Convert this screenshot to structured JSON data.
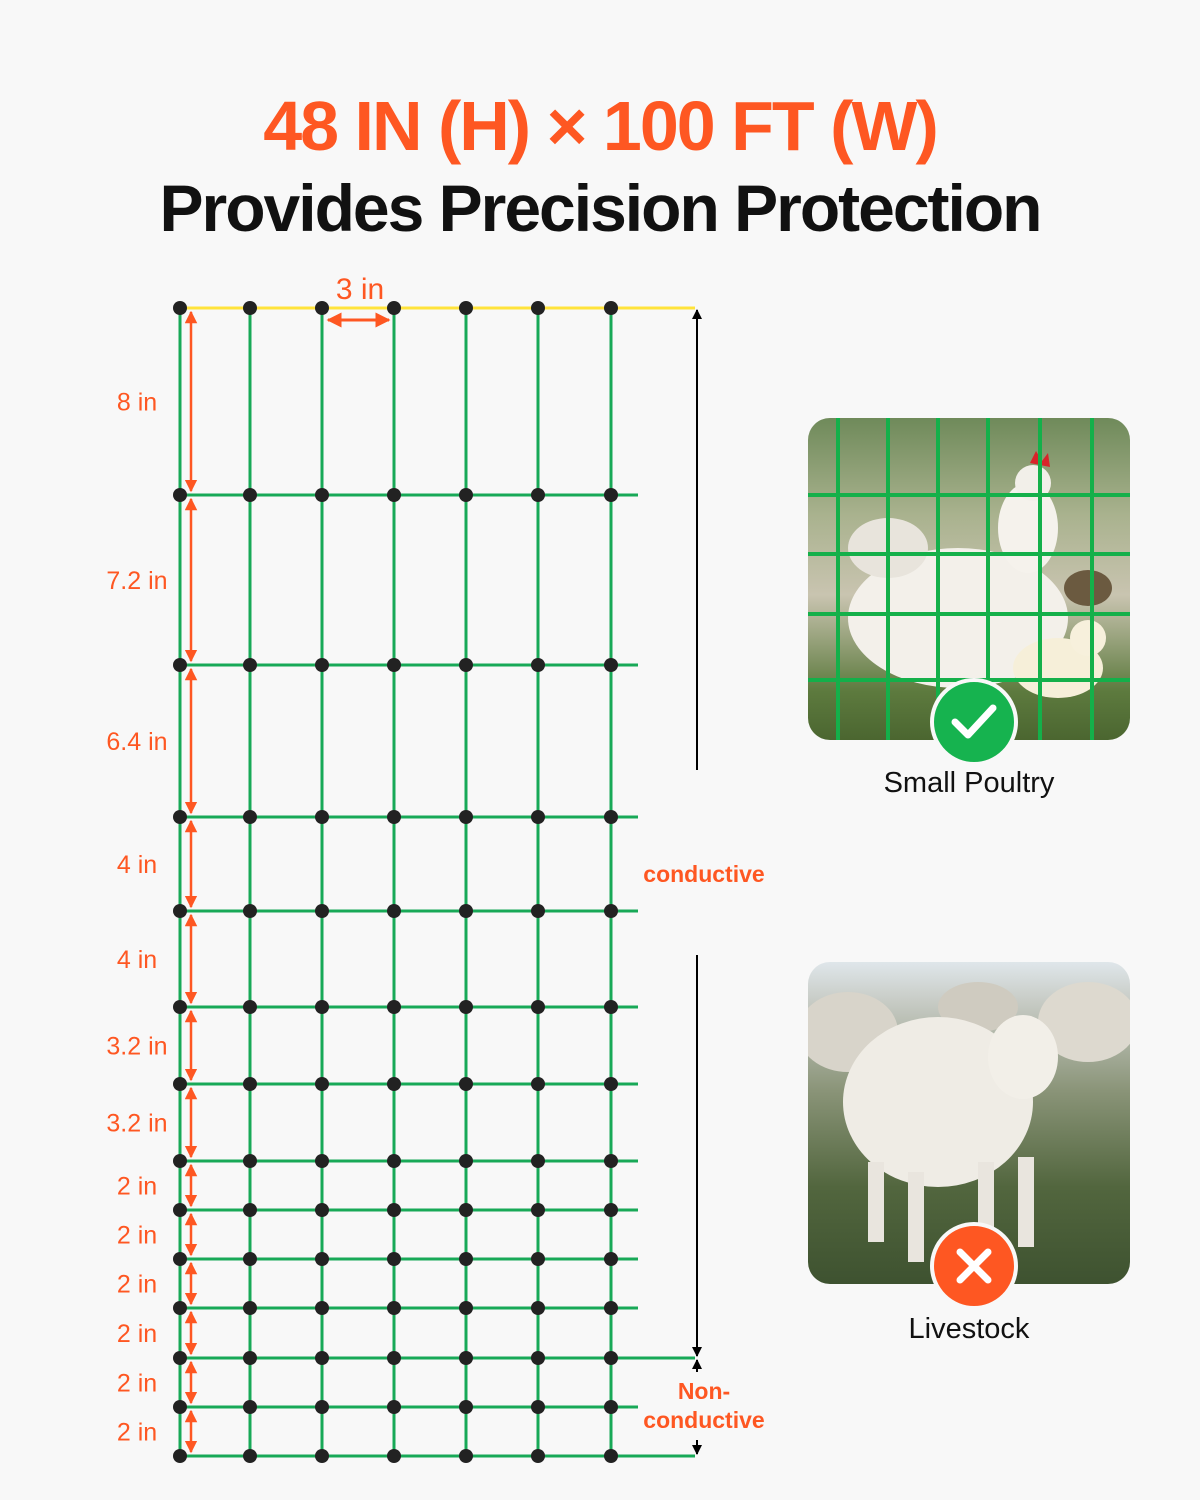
{
  "header": {
    "dimensions": "48 IN (H) × 100 FT (W)",
    "tagline": "Provides Precision Protection"
  },
  "diagram": {
    "column_spacing_label": "3 in",
    "row_spacing_labels": [
      "8 in",
      "7.2 in",
      "6.4 in",
      "4 in",
      "4 in",
      "3.2 in",
      "3.2 in",
      "2 in",
      "2 in",
      "2 in",
      "2 in",
      "2 in",
      "2 in"
    ],
    "zones": {
      "conductive": "conductive",
      "non_conductive_line1": "Non-",
      "non_conductive_line2": "conductive"
    },
    "colors": {
      "wire": "#18a957",
      "top_wire": "#ffe33b",
      "knot": "#222222",
      "dimension": "#fe5722"
    }
  },
  "suitability": [
    {
      "label": "Small Poultry",
      "status": "suitable",
      "icon": "check-icon",
      "color": "#16b34f"
    },
    {
      "label": "Livestock",
      "status": "unsuitable",
      "icon": "x-icon",
      "color": "#fe5722"
    }
  ]
}
